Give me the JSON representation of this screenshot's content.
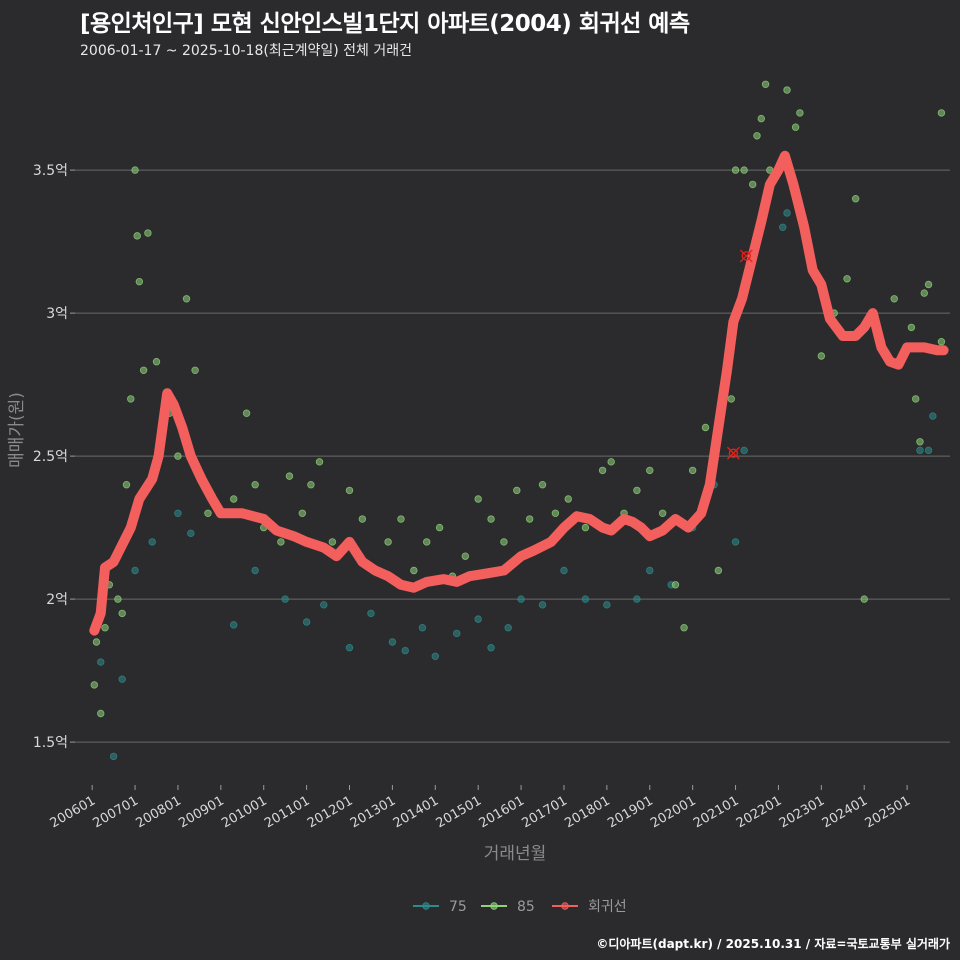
{
  "chart_data": {
    "type": "scatter",
    "title": "[용인처인구] 모현 신안인스빌1단지 아파트(2004) 회귀선 예측",
    "subtitle": "2006-01-17 ~ 2025-10-18(최근계약일) 전체 거래건",
    "xlabel": "거래년월",
    "ylabel": "매매가(원)",
    "ylim": [
      1.35,
      3.85
    ],
    "xlim": [
      2005.6,
      2026.0
    ],
    "yticks": [
      {
        "value": 1.5,
        "label": "1.5억"
      },
      {
        "value": 2.0,
        "label": "2억"
      },
      {
        "value": 2.5,
        "label": "2.5억"
      },
      {
        "value": 3.0,
        "label": "3억"
      },
      {
        "value": 3.5,
        "label": "3.5억"
      }
    ],
    "xticks": [
      {
        "value": 2006.0,
        "label": "200601"
      },
      {
        "value": 2007.0,
        "label": "200701"
      },
      {
        "value": 2008.0,
        "label": "200801"
      },
      {
        "value": 2009.0,
        "label": "200901"
      },
      {
        "value": 2010.0,
        "label": "201001"
      },
      {
        "value": 2011.0,
        "label": "201101"
      },
      {
        "value": 2012.0,
        "label": "201201"
      },
      {
        "value": 2013.0,
        "label": "201301"
      },
      {
        "value": 2014.0,
        "label": "201401"
      },
      {
        "value": 2015.0,
        "label": "201501"
      },
      {
        "value": 2016.0,
        "label": "201601"
      },
      {
        "value": 2017.0,
        "label": "201701"
      },
      {
        "value": 2018.0,
        "label": "201801"
      },
      {
        "value": 2019.0,
        "label": "201901"
      },
      {
        "value": 2020.0,
        "label": "202001"
      },
      {
        "value": 2021.0,
        "label": "202101"
      },
      {
        "value": 2022.0,
        "label": "202201"
      },
      {
        "value": 2023.0,
        "label": "202301"
      },
      {
        "value": 2024.0,
        "label": "202401"
      },
      {
        "value": 2025.0,
        "label": "202501"
      }
    ],
    "legend": {
      "position": "bottom",
      "items": [
        {
          "label": "75",
          "color": "#2e8b8b"
        },
        {
          "label": "85",
          "color": "#8fd27a"
        },
        {
          "label": "회귀선",
          "color": "#f25f5c"
        }
      ]
    },
    "series": [
      {
        "name": "75",
        "color": "#2e8b8b",
        "points": [
          [
            2006.2,
            1.78
          ],
          [
            2006.5,
            1.45
          ],
          [
            2006.7,
            1.72
          ],
          [
            2007.0,
            2.1
          ],
          [
            2007.4,
            2.2
          ],
          [
            2008.0,
            2.3
          ],
          [
            2008.3,
            2.23
          ],
          [
            2009.3,
            1.91
          ],
          [
            2009.8,
            2.1
          ],
          [
            2010.5,
            2.0
          ],
          [
            2011.0,
            1.92
          ],
          [
            2011.4,
            1.98
          ],
          [
            2012.0,
            1.83
          ],
          [
            2012.5,
            1.95
          ],
          [
            2013.0,
            1.85
          ],
          [
            2013.3,
            1.82
          ],
          [
            2013.7,
            1.9
          ],
          [
            2014.0,
            1.8
          ],
          [
            2014.5,
            1.88
          ],
          [
            2015.0,
            1.93
          ],
          [
            2015.3,
            1.83
          ],
          [
            2015.7,
            1.9
          ],
          [
            2016.0,
            2.0
          ],
          [
            2016.5,
            1.98
          ],
          [
            2017.0,
            2.1
          ],
          [
            2017.5,
            2.0
          ],
          [
            2018.0,
            1.98
          ],
          [
            2018.7,
            2.0
          ],
          [
            2019.0,
            2.1
          ],
          [
            2019.5,
            2.05
          ],
          [
            2020.0,
            2.25
          ],
          [
            2020.5,
            2.4
          ],
          [
            2021.0,
            2.2
          ],
          [
            2021.2,
            2.52
          ],
          [
            2022.1,
            3.3
          ],
          [
            2022.2,
            3.35
          ],
          [
            2024.0,
            2.95
          ],
          [
            2025.3,
            2.52
          ],
          [
            2025.5,
            2.52
          ],
          [
            2025.6,
            2.64
          ]
        ]
      },
      {
        "name": "85",
        "color": "#8fd27a",
        "points": [
          [
            2006.05,
            1.7
          ],
          [
            2006.1,
            1.85
          ],
          [
            2006.2,
            1.6
          ],
          [
            2006.3,
            1.9
          ],
          [
            2006.4,
            2.05
          ],
          [
            2006.6,
            2.0
          ],
          [
            2006.7,
            1.95
          ],
          [
            2006.8,
            2.4
          ],
          [
            2006.9,
            2.7
          ],
          [
            2007.0,
            3.5
          ],
          [
            2007.05,
            3.27
          ],
          [
            2007.1,
            3.11
          ],
          [
            2007.2,
            2.8
          ],
          [
            2007.3,
            3.28
          ],
          [
            2007.5,
            2.83
          ],
          [
            2007.8,
            2.65
          ],
          [
            2008.0,
            2.5
          ],
          [
            2008.2,
            3.05
          ],
          [
            2008.4,
            2.8
          ],
          [
            2008.7,
            2.3
          ],
          [
            2009.0,
            2.3
          ],
          [
            2009.3,
            2.35
          ],
          [
            2009.6,
            2.65
          ],
          [
            2009.8,
            2.4
          ],
          [
            2010.0,
            2.25
          ],
          [
            2010.4,
            2.2
          ],
          [
            2010.6,
            2.43
          ],
          [
            2010.9,
            2.3
          ],
          [
            2011.1,
            2.4
          ],
          [
            2011.3,
            2.48
          ],
          [
            2011.6,
            2.2
          ],
          [
            2012.0,
            2.38
          ],
          [
            2012.3,
            2.28
          ],
          [
            2012.6,
            2.1
          ],
          [
            2012.9,
            2.2
          ],
          [
            2013.2,
            2.28
          ],
          [
            2013.5,
            2.1
          ],
          [
            2013.8,
            2.2
          ],
          [
            2014.1,
            2.25
          ],
          [
            2014.4,
            2.08
          ],
          [
            2014.7,
            2.15
          ],
          [
            2015.0,
            2.35
          ],
          [
            2015.3,
            2.28
          ],
          [
            2015.6,
            2.2
          ],
          [
            2015.9,
            2.38
          ],
          [
            2016.2,
            2.28
          ],
          [
            2016.5,
            2.4
          ],
          [
            2016.8,
            2.3
          ],
          [
            2017.1,
            2.35
          ],
          [
            2017.5,
            2.25
          ],
          [
            2017.9,
            2.45
          ],
          [
            2018.1,
            2.48
          ],
          [
            2018.4,
            2.3
          ],
          [
            2018.7,
            2.38
          ],
          [
            2019.0,
            2.45
          ],
          [
            2019.3,
            2.3
          ],
          [
            2019.6,
            2.05
          ],
          [
            2019.8,
            1.9
          ],
          [
            2020.0,
            2.45
          ],
          [
            2020.3,
            2.6
          ],
          [
            2020.6,
            2.1
          ],
          [
            2020.9,
            2.7
          ],
          [
            2021.0,
            3.5
          ],
          [
            2021.2,
            3.5
          ],
          [
            2021.4,
            3.45
          ],
          [
            2021.5,
            3.62
          ],
          [
            2021.6,
            3.68
          ],
          [
            2021.7,
            3.8
          ],
          [
            2021.8,
            3.5
          ],
          [
            2022.0,
            3.5
          ],
          [
            2022.2,
            3.78
          ],
          [
            2022.4,
            3.65
          ],
          [
            2022.5,
            3.7
          ],
          [
            2023.0,
            2.85
          ],
          [
            2023.3,
            3.0
          ],
          [
            2023.6,
            3.12
          ],
          [
            2023.8,
            3.4
          ],
          [
            2024.0,
            2.0
          ],
          [
            2024.4,
            2.9
          ],
          [
            2024.7,
            3.05
          ],
          [
            2025.1,
            2.95
          ],
          [
            2025.2,
            2.7
          ],
          [
            2025.3,
            2.55
          ],
          [
            2025.4,
            3.07
          ],
          [
            2025.5,
            3.1
          ],
          [
            2025.8,
            3.7
          ],
          [
            2025.8,
            2.9
          ]
        ]
      },
      {
        "name": "회귀선",
        "color": "#f25f5c",
        "points": [
          [
            2006.05,
            1.89
          ],
          [
            2006.2,
            1.95
          ],
          [
            2006.3,
            2.11
          ],
          [
            2006.5,
            2.13
          ],
          [
            2006.7,
            2.19
          ],
          [
            2006.9,
            2.25
          ],
          [
            2007.1,
            2.35
          ],
          [
            2007.4,
            2.42
          ],
          [
            2007.55,
            2.5
          ],
          [
            2007.75,
            2.72
          ],
          [
            2007.9,
            2.68
          ],
          [
            2008.1,
            2.6
          ],
          [
            2008.3,
            2.5
          ],
          [
            2008.55,
            2.42
          ],
          [
            2008.8,
            2.35
          ],
          [
            2009.0,
            2.3
          ],
          [
            2009.5,
            2.3
          ],
          [
            2010.0,
            2.28
          ],
          [
            2010.3,
            2.24
          ],
          [
            2010.7,
            2.22
          ],
          [
            2011.0,
            2.2
          ],
          [
            2011.4,
            2.18
          ],
          [
            2011.7,
            2.15
          ],
          [
            2012.0,
            2.2
          ],
          [
            2012.3,
            2.13
          ],
          [
            2012.6,
            2.1
          ],
          [
            2012.9,
            2.08
          ],
          [
            2013.2,
            2.05
          ],
          [
            2013.5,
            2.04
          ],
          [
            2013.8,
            2.06
          ],
          [
            2014.2,
            2.07
          ],
          [
            2014.5,
            2.06
          ],
          [
            2014.8,
            2.08
          ],
          [
            2015.2,
            2.09
          ],
          [
            2015.6,
            2.1
          ],
          [
            2016.0,
            2.15
          ],
          [
            2016.3,
            2.17
          ],
          [
            2016.7,
            2.2
          ],
          [
            2017.0,
            2.25
          ],
          [
            2017.3,
            2.29
          ],
          [
            2017.6,
            2.28
          ],
          [
            2017.9,
            2.25
          ],
          [
            2018.1,
            2.24
          ],
          [
            2018.4,
            2.28
          ],
          [
            2018.6,
            2.27
          ],
          [
            2018.8,
            2.25
          ],
          [
            2019.0,
            2.22
          ],
          [
            2019.3,
            2.24
          ],
          [
            2019.6,
            2.28
          ],
          [
            2019.9,
            2.25
          ],
          [
            2020.2,
            2.3
          ],
          [
            2020.4,
            2.4
          ],
          [
            2020.6,
            2.6
          ],
          [
            2020.8,
            2.8
          ],
          [
            2020.95,
            2.97
          ],
          [
            2021.15,
            3.05
          ],
          [
            2021.4,
            3.2
          ],
          [
            2021.6,
            3.32
          ],
          [
            2021.8,
            3.45
          ],
          [
            2022.0,
            3.5
          ],
          [
            2022.15,
            3.55
          ],
          [
            2022.35,
            3.45
          ],
          [
            2022.6,
            3.3
          ],
          [
            2022.8,
            3.15
          ],
          [
            2023.0,
            3.1
          ],
          [
            2023.2,
            2.98
          ],
          [
            2023.5,
            2.92
          ],
          [
            2023.8,
            2.92
          ],
          [
            2024.0,
            2.95
          ],
          [
            2024.2,
            3.0
          ],
          [
            2024.4,
            2.88
          ],
          [
            2024.6,
            2.83
          ],
          [
            2024.8,
            2.82
          ],
          [
            2025.0,
            2.88
          ],
          [
            2025.4,
            2.88
          ],
          [
            2025.7,
            2.87
          ],
          [
            2025.85,
            2.87
          ]
        ]
      }
    ],
    "highlights": [
      {
        "x": 2020.95,
        "y": 2.51
      },
      {
        "x": 2021.25,
        "y": 3.2
      }
    ]
  },
  "footer": "©디아파트(dapt.kr) / 2025.10.31 / 자료=국토교통부 실거래가"
}
